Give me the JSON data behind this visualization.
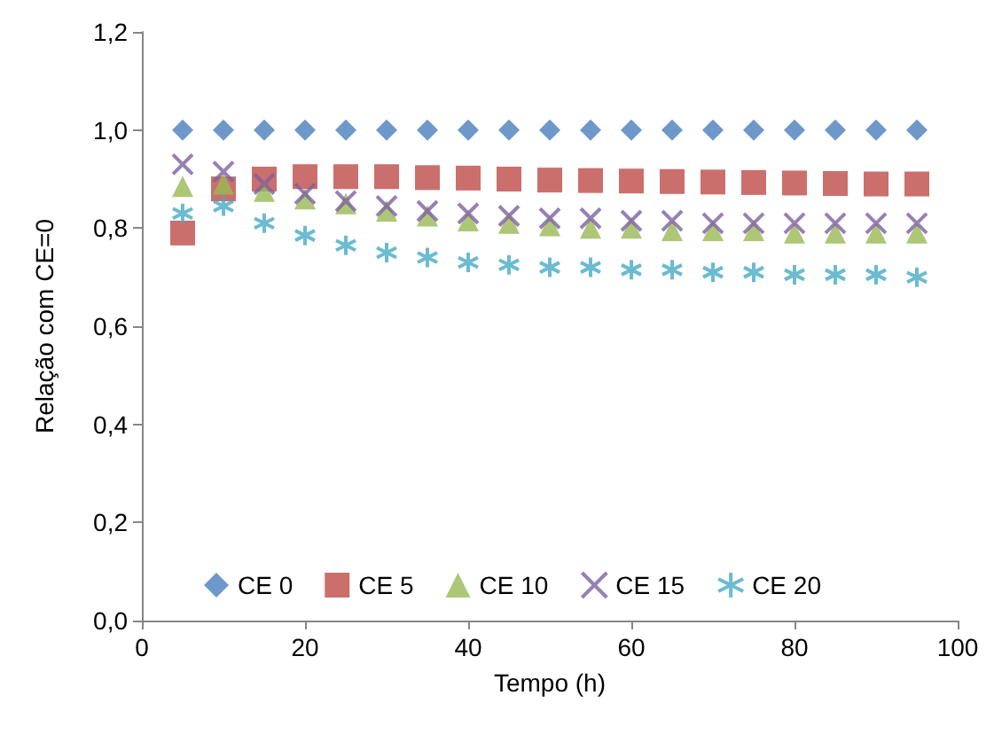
{
  "chart_data": {
    "type": "scatter",
    "xlabel": "Tempo (h)",
    "ylabel": "Relação com CE=0",
    "x": [
      5,
      10,
      15,
      20,
      25,
      30,
      35,
      40,
      45,
      50,
      55,
      60,
      65,
      70,
      75,
      80,
      85,
      90,
      95
    ],
    "series": [
      {
        "name": "CE 0",
        "color": "#4a7ebb",
        "marker": "diamond",
        "values": [
          1,
          1,
          1,
          1,
          1,
          1,
          1,
          1,
          1,
          1,
          1,
          1,
          1,
          1,
          1,
          1,
          1,
          1,
          1
        ]
      },
      {
        "name": "CE 5",
        "color": "#be4b48",
        "marker": "square",
        "values": [
          0.79,
          0.88,
          0.9,
          0.905,
          0.905,
          0.905,
          0.903,
          0.902,
          0.9,
          0.898,
          0.897,
          0.896,
          0.895,
          0.894,
          0.893,
          0.892,
          0.891,
          0.89,
          0.89
        ]
      },
      {
        "name": "CE 10",
        "color": "#98b954",
        "marker": "triangle",
        "values": [
          0.885,
          0.89,
          0.875,
          0.86,
          0.85,
          0.835,
          0.825,
          0.815,
          0.81,
          0.805,
          0.8,
          0.8,
          0.795,
          0.795,
          0.795,
          0.79,
          0.79,
          0.79,
          0.79
        ]
      },
      {
        "name": "CE 15",
        "color": "#7d60a0",
        "marker": "cross",
        "values": [
          0.93,
          0.915,
          0.89,
          0.87,
          0.855,
          0.845,
          0.835,
          0.83,
          0.825,
          0.82,
          0.82,
          0.815,
          0.815,
          0.81,
          0.81,
          0.81,
          0.81,
          0.81,
          0.81
        ]
      },
      {
        "name": "CE 20",
        "color": "#46aac5",
        "marker": "cross",
        "values": [
          0.83,
          0.845,
          0.81,
          0.785,
          0.765,
          0.75,
          0.74,
          0.73,
          0.725,
          0.72,
          0.72,
          0.715,
          0.715,
          0.71,
          0.71,
          0.705,
          0.705,
          0.705,
          0.7
        ]
      }
    ],
    "xlim": [
      0,
      100
    ],
    "xticks": [
      0,
      20,
      40,
      60,
      80,
      100
    ],
    "ylim": [
      0,
      1.2
    ],
    "yticks": [
      {
        "value": 0,
        "label": "0,0"
      },
      {
        "value": 0.2,
        "label": "0,2"
      },
      {
        "value": 0.4,
        "label": "0,4"
      },
      {
        "value": 0.6,
        "label": "0,6"
      },
      {
        "value": 0.8,
        "label": "0,8"
      },
      {
        "value": 1,
        "label": "1,0"
      },
      {
        "value": 1.2,
        "label": "1,2"
      }
    ],
    "grid": false,
    "legend": "bottom"
  }
}
